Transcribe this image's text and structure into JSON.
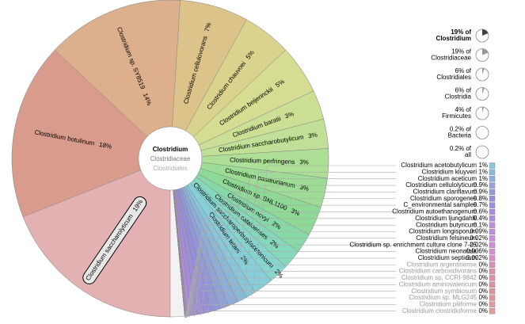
{
  "chart_data": [
    {
      "type": "pie",
      "center": [
        "Clostridium",
        "Clostridiaceae",
        "Clostridiales"
      ],
      "categories": [
        "Clostridium saccharolyticum",
        "Clostridium botulinum",
        "Clostridium sp. SY8519",
        "Clostridium cellulovorans",
        "Clostridium chauvoei",
        "Clostridium beijerinckii",
        "Clostridium baratii",
        "Clostridium saccharobutylicum",
        "Clostridium perfringens",
        "Clostridium pasteurianum",
        "Clostridium sp. BNL1100",
        "Clostridium novyi",
        "Clostridium cataloenses",
        "Clostridium saccharoperbutylacetonicum",
        "Clostridium tetani",
        "Clostridium acetobutylicum",
        "Clostridium kluyveri",
        "Clostridium aceticum",
        "Clostridium cellulolyticum",
        "Clostridium clariflavum",
        "Clostridium sporogenes",
        "C_environmental samples",
        "Clostridium autoethanogenum",
        "Clostridium ljungdahlii",
        "Clostridium butyricum",
        "Clostridium longisporum",
        "Clostridium felsineum",
        "Clostridium sp. enrichment culture clone 7-25",
        "Clostridium neonatale",
        "Clostridium septicum",
        "Clostridium argentinense",
        "Clostridium carboxidivorans",
        "Clostridium sp. CCRI-9842",
        "Clostridium aminovalericum",
        "Clostridium symbiosum",
        "Clostridium sp. MLG245",
        "Clostridium piliforme",
        "Clostridium clostridioforme"
      ],
      "values": [
        19,
        18,
        14,
        7,
        5,
        5,
        3,
        3,
        3,
        3,
        3,
        2,
        2,
        2,
        2,
        1,
        1,
        1,
        0.9,
        0.9,
        0.8,
        0.7,
        0.6,
        0.4,
        0.1,
        0.09,
        0.02,
        0.02,
        0.006,
        0.002,
        0,
        0,
        0,
        0,
        0,
        0,
        0,
        0
      ],
      "value_labels": [
        "19%",
        "18%",
        "14%",
        "7%",
        "5%",
        "5%",
        "3%",
        "3%",
        "3%",
        "3%",
        "3%",
        "2%",
        "2%",
        "2%",
        "2%",
        "1%",
        "1%",
        "1%",
        "0.9%",
        "0.9%",
        "0.8%",
        "0.7%",
        "0.6%",
        "0.4%",
        "0.1%",
        "0.09%",
        "0.02%",
        "0.02%",
        "0.006%",
        "0.002%",
        "0%",
        "0%",
        "0%",
        "0%",
        "0%",
        "0%",
        "0%",
        "0%"
      ],
      "colors": [
        "#e3b1b1",
        "#d99c8c",
        "#dcb08d",
        "#dcc38a",
        "#d9d38e",
        "#d6dc92",
        "#cbe094",
        "#bfe096",
        "#aedf96",
        "#9ddc95",
        "#8ed995",
        "#86d8a6",
        "#86d8bb",
        "#86d6cf",
        "#86cfd8",
        "#88c6d9",
        "#8abad9",
        "#8daed9",
        "#8fa2da",
        "#9297d9",
        "#968fd9",
        "#9d8fd8",
        "#a58ed8",
        "#ae8ed8",
        "#b78ed8",
        "#c08ed8",
        "#c98ed8",
        "#d18ed6",
        "#d78ecd",
        "#d88ec2",
        "#d98fb8",
        "#da90ae",
        "#da91a6",
        "#db929f",
        "#dc949a",
        "#dd9898",
        "#de9c9a",
        "#dfa09c"
      ]
    },
    {
      "type": "pie-icons",
      "categories": [
        "Clostridium",
        "Clostridiaceae",
        "Clostridiales",
        "Clostridia",
        "Firmicutes",
        "Bacteria",
        "all"
      ],
      "values": [
        19,
        19,
        6,
        6,
        4,
        0.2,
        0.2
      ],
      "value_labels": [
        "19% of",
        "19% of",
        "6% of",
        "6% of",
        "4% of",
        "0.2% of",
        "0.2% of"
      ]
    }
  ]
}
